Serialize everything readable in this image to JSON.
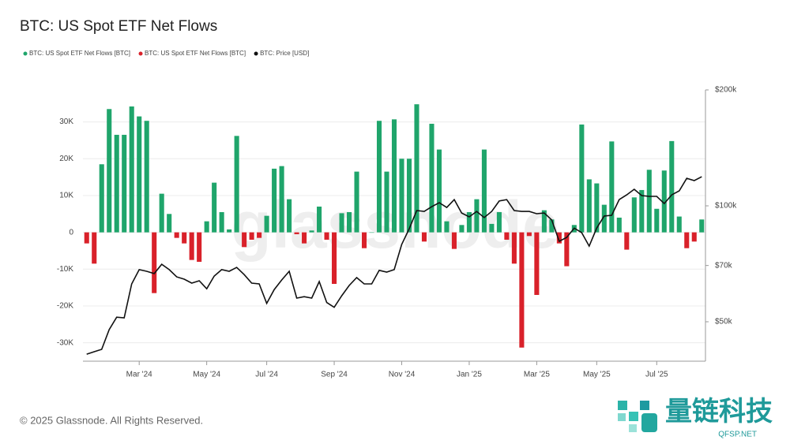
{
  "chart_data": {
    "type": "bar",
    "title": "BTC: US Spot ETF Net Flows",
    "watermark": "glassnode",
    "footer": "© 2025 Glassnode. All Rights Reserved.",
    "brand": {
      "name": "量链科技",
      "site": "QFSP.NET"
    },
    "categories": [
      null,
      null,
      null,
      null,
      null,
      null,
      null,
      "Mar '24",
      null,
      null,
      null,
      null,
      null,
      null,
      null,
      null,
      "May '24",
      null,
      null,
      null,
      null,
      null,
      null,
      null,
      "Jul '24",
      null,
      null,
      null,
      null,
      null,
      null,
      null,
      null,
      "Sep '24",
      null,
      null,
      null,
      null,
      null,
      null,
      null,
      null,
      "Nov '24",
      null,
      null,
      null,
      null,
      null,
      null,
      null,
      null,
      "Jan '25",
      null,
      null,
      null,
      null,
      null,
      null,
      null,
      null,
      "Mar '25",
      null,
      null,
      null,
      null,
      null,
      null,
      null,
      "May '25",
      null,
      null,
      null,
      null,
      null,
      null,
      null,
      "Jul '25",
      null,
      null,
      null,
      null,
      null,
      null
    ],
    "series": [
      {
        "name": "BTC: US Spot ETF Net Flows [BTC]",
        "type": "bar",
        "color": "#1fa56b",
        "values": [
          null,
          null,
          18500,
          33500,
          26500,
          26500,
          34200,
          31500,
          30300,
          null,
          10500,
          5000,
          null,
          null,
          null,
          null,
          3000,
          13500,
          5500,
          800,
          26200,
          null,
          null,
          null,
          4500,
          17300,
          18000,
          9000,
          null,
          null,
          500,
          7000,
          null,
          null,
          5200,
          5500,
          16500,
          null,
          0,
          30300,
          16500,
          30700,
          20000,
          20000,
          34800,
          null,
          29500,
          22500,
          3000,
          null,
          2000,
          5500,
          9000,
          22500,
          2300,
          5500,
          null,
          null,
          null,
          null,
          null,
          6000,
          3500,
          null,
          null,
          2000,
          29300,
          14400,
          13300,
          7500,
          24700,
          4000,
          null,
          9500,
          11500,
          17000,
          6400,
          16800,
          24800,
          4300,
          null,
          null,
          3500
        ]
      },
      {
        "name": "BTC: US Spot ETF Net Flows [BTC]",
        "type": "bar",
        "color": "#d9212a",
        "values": [
          -3000,
          -8500,
          null,
          null,
          null,
          null,
          null,
          null,
          null,
          -16500,
          null,
          null,
          -1500,
          -3000,
          -7500,
          -8000,
          null,
          null,
          null,
          null,
          null,
          -4000,
          -2000,
          -1500,
          null,
          null,
          null,
          null,
          -500,
          -3000,
          null,
          null,
          -2000,
          -14000,
          null,
          null,
          null,
          -4300,
          null,
          null,
          null,
          null,
          null,
          null,
          null,
          -2500,
          null,
          null,
          null,
          -4500,
          null,
          null,
          null,
          null,
          null,
          null,
          -2000,
          -8500,
          -31300,
          -1000,
          -17000,
          null,
          null,
          -3000,
          -9200,
          null,
          null,
          null,
          null,
          null,
          null,
          null,
          -4700,
          null,
          null,
          null,
          null,
          null,
          null,
          null,
          -4300,
          -2500,
          null
        ]
      },
      {
        "name": "BTC: Price [USD]",
        "type": "line",
        "color": "#111111",
        "axis": "y2",
        "values": [
          41200,
          41800,
          42400,
          47700,
          51400,
          51200,
          62700,
          68300,
          67600,
          66700,
          70500,
          68300,
          65400,
          64500,
          63000,
          63900,
          60900,
          65700,
          68300,
          67600,
          69200,
          66300,
          63000,
          62700,
          55800,
          60600,
          64200,
          67600,
          57600,
          58100,
          57600,
          63600,
          56100,
          54500,
          58400,
          62100,
          65100,
          62700,
          62700,
          68000,
          67300,
          68300,
          79400,
          87200,
          97200,
          96700,
          99500,
          101900,
          99000,
          103800,
          95800,
          93600,
          96700,
          93200,
          96700,
          102900,
          103800,
          97200,
          96700,
          96700,
          95400,
          95800,
          91900,
          80900,
          82800,
          87500,
          85200,
          78600,
          87500,
          94100,
          94500,
          103800,
          106800,
          110400,
          106300,
          105800,
          105800,
          101400,
          106800,
          109400,
          117900,
          116300,
          119000
        ]
      }
    ],
    "ylim": [
      -35000,
      38700
    ],
    "yticks": [
      {
        "value": -30000,
        "label": "-30K"
      },
      {
        "value": -20000,
        "label": "-20K"
      },
      {
        "value": -10000,
        "label": "-10K"
      },
      0,
      {
        "value": 10000,
        "label": "10K"
      },
      {
        "value": 20000,
        "label": "20K"
      },
      {
        "value": 30000,
        "label": "30K"
      }
    ],
    "y2lim": [
      39500,
      200000
    ],
    "y2scale": "log",
    "y2ticks": [
      {
        "value": 50000,
        "label": "$50k"
      },
      {
        "value": 70000,
        "label": "$70k"
      },
      {
        "value": 100000,
        "label": "$100k"
      },
      {
        "value": 200000,
        "label": "$200k"
      }
    ],
    "grid": true,
    "legend": "top-left"
  }
}
